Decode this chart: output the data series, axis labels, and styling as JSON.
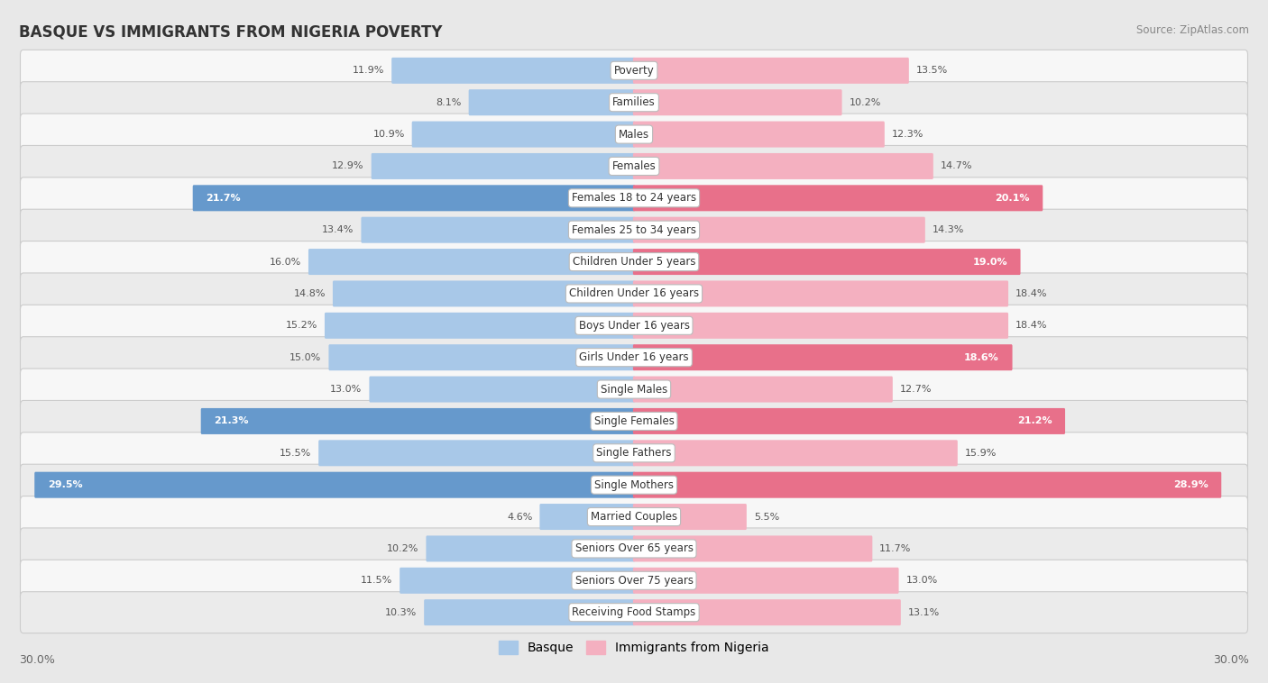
{
  "title": "BASQUE VS IMMIGRANTS FROM NIGERIA POVERTY",
  "source": "Source: ZipAtlas.com",
  "categories": [
    "Poverty",
    "Families",
    "Males",
    "Females",
    "Females 18 to 24 years",
    "Females 25 to 34 years",
    "Children Under 5 years",
    "Children Under 16 years",
    "Boys Under 16 years",
    "Girls Under 16 years",
    "Single Males",
    "Single Females",
    "Single Fathers",
    "Single Mothers",
    "Married Couples",
    "Seniors Over 65 years",
    "Seniors Over 75 years",
    "Receiving Food Stamps"
  ],
  "basque_values": [
    11.9,
    8.1,
    10.9,
    12.9,
    21.7,
    13.4,
    16.0,
    14.8,
    15.2,
    15.0,
    13.0,
    21.3,
    15.5,
    29.5,
    4.6,
    10.2,
    11.5,
    10.3
  ],
  "nigeria_values": [
    13.5,
    10.2,
    12.3,
    14.7,
    20.1,
    14.3,
    19.0,
    18.4,
    18.4,
    18.6,
    12.7,
    21.2,
    15.9,
    28.9,
    5.5,
    11.7,
    13.0,
    13.1
  ],
  "basque_color_normal": "#a8c8e8",
  "basque_color_highlight": "#6699cc",
  "nigeria_color_normal": "#f4b0c0",
  "nigeria_color_highlight": "#e8708a",
  "row_color_odd": "#f7f7f7",
  "row_color_even": "#ebebeb",
  "background_color": "#e8e8e8",
  "max_value": 30.0,
  "legend_basque": "Basque",
  "legend_nigeria": "Immigrants from Nigeria",
  "basque_highlight_threshold": 19.0,
  "nigeria_highlight_threshold": 18.5
}
